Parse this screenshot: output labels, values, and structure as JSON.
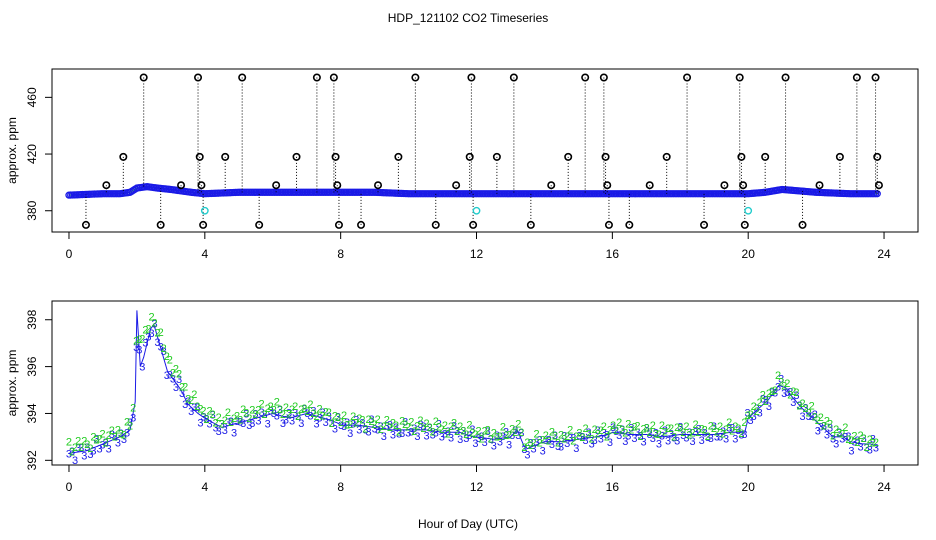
{
  "figure": {
    "title": "HDP_121102  CO2 Timeseries",
    "xlabel": "Hour of Day (UTC)"
  },
  "chart_data": [
    {
      "type": "scatter",
      "title": "HDP_121102  CO2 Timeseries",
      "xlabel": "",
      "ylabel": "approx. ppm",
      "xlim": [
        -0.5,
        25
      ],
      "ylim": [
        365,
        480
      ],
      "xticks": [
        0,
        4,
        8,
        12,
        16,
        20,
        24
      ],
      "yticks": [
        380,
        420,
        460
      ],
      "grid": false,
      "legend": "none",
      "series": [
        {
          "color": "#1a1ae6",
          "style": "dense circles",
          "x": [
            0.0,
            1.0,
            1.5,
            1.8,
            2.0,
            2.3,
            2.6,
            3.0,
            3.3,
            3.6,
            4.0,
            5.0,
            6.0,
            7.0,
            8.0,
            9.0,
            10.0,
            11.0,
            12.0,
            13.0,
            14.0,
            15.0,
            16.0,
            17.0,
            18.0,
            19.0,
            20.0,
            20.5,
            21.0,
            21.5,
            22.0,
            23.0,
            23.8
          ],
          "y": [
            391,
            392,
            392,
            393,
            396,
            397,
            396,
            395,
            394,
            393,
            392,
            393,
            393,
            393,
            393,
            393,
            392,
            392,
            392,
            392,
            392,
            392,
            392,
            392,
            392,
            392,
            392,
            393,
            395,
            394,
            393,
            392,
            392
          ]
        },
        {
          "color": "#000000",
          "style": "outlier circles with dotted drop lines",
          "x": [
            0.5,
            1.1,
            1.6,
            2.2,
            2.7,
            3.3,
            3.8,
            3.85,
            3.9,
            3.95,
            4.6,
            5.1,
            5.6,
            6.1,
            6.7,
            7.3,
            7.8,
            7.85,
            7.9,
            7.95,
            8.6,
            9.1,
            9.7,
            10.2,
            10.8,
            11.4,
            11.8,
            11.85,
            11.9,
            12.6,
            13.1,
            13.6,
            14.2,
            14.7,
            15.2,
            15.75,
            15.8,
            15.85,
            15.9,
            16.5,
            17.1,
            17.6,
            18.2,
            18.7,
            19.3,
            19.75,
            19.8,
            19.85,
            19.9,
            20.5,
            21.1,
            21.6,
            22.1,
            22.7,
            23.2,
            23.75,
            23.8,
            23.85
          ],
          "y": [
            370,
            398,
            418,
            474,
            370,
            398,
            474,
            418,
            398,
            370,
            418,
            474,
            370,
            398,
            418,
            474,
            474,
            418,
            398,
            370,
            370,
            398,
            418,
            474,
            370,
            398,
            418,
            474,
            370,
            418,
            474,
            370,
            398,
            418,
            474,
            474,
            418,
            398,
            370,
            370,
            398,
            418,
            474,
            370,
            398,
            474,
            418,
            398,
            370,
            418,
            474,
            370,
            398,
            418,
            474,
            474,
            418,
            398
          ]
        },
        {
          "color": "#22cccc",
          "style": "circles",
          "x": [
            4.0,
            12.0,
            20.0
          ],
          "y": [
            380,
            380,
            380
          ]
        }
      ]
    },
    {
      "type": "scatter",
      "title": "",
      "xlabel": "Hour of Day (UTC)",
      "ylabel": "approx. ppm",
      "xlim": [
        -0.5,
        25
      ],
      "ylim": [
        391.8,
        398.8
      ],
      "xticks": [
        0,
        4,
        8,
        12,
        16,
        20,
        24
      ],
      "yticks": [
        392,
        394,
        396,
        398
      ],
      "grid": false,
      "legend": "none",
      "series": [
        {
          "color": "#1a1ae6",
          "marker": "3",
          "x": [
            0.0,
            0.5,
            1.0,
            1.5,
            1.8,
            1.95,
            2.0,
            2.1,
            2.2,
            2.4,
            2.5,
            2.7,
            2.9,
            3.1,
            3.3,
            3.5,
            3.8,
            4.0,
            4.5,
            5.0,
            5.5,
            6.0,
            6.5,
            7.0,
            7.5,
            7.9,
            8.0,
            8.5,
            9.0,
            9.5,
            10.0,
            10.5,
            11.0,
            11.5,
            11.9,
            12.0,
            12.5,
            13.0,
            13.2,
            13.4,
            13.5,
            14.0,
            14.5,
            15.0,
            15.5,
            15.9,
            16.0,
            16.5,
            17.0,
            17.5,
            18.0,
            18.5,
            19.0,
            19.5,
            19.9,
            20.0,
            20.3,
            20.6,
            20.9,
            21.1,
            21.3,
            21.6,
            21.9,
            22.2,
            22.5,
            22.8,
            23.0,
            23.3,
            23.6,
            23.8
          ],
          "y": [
            392.3,
            392.4,
            392.7,
            393.0,
            393.3,
            394.5,
            398.4,
            396.0,
            396.4,
            397.6,
            397.8,
            396.8,
            395.8,
            395.4,
            395.0,
            394.4,
            394.0,
            393.8,
            393.4,
            393.6,
            393.8,
            394.0,
            393.8,
            394.0,
            393.8,
            393.6,
            393.5,
            393.5,
            393.4,
            393.3,
            393.3,
            393.3,
            393.2,
            393.2,
            393.0,
            393.0,
            392.9,
            393.0,
            393.3,
            392.6,
            392.5,
            392.8,
            392.8,
            392.9,
            393.0,
            393.1,
            393.2,
            393.1,
            393.1,
            393.0,
            393.1,
            393.1,
            393.1,
            393.2,
            393.2,
            393.8,
            394.2,
            394.6,
            395.2,
            395.1,
            394.7,
            394.2,
            393.8,
            393.4,
            393.0,
            393.0,
            392.8,
            392.7,
            392.7,
            392.6
          ]
        },
        {
          "color": "#22cc22",
          "marker": "2",
          "x": [
            0.0,
            0.5,
            1.0,
            1.5,
            1.8,
            1.95,
            2.0,
            2.1,
            2.2,
            2.4,
            2.5,
            2.7,
            2.9,
            3.1,
            3.3,
            3.5,
            3.8,
            4.0,
            4.5,
            5.0,
            5.5,
            6.0,
            6.5,
            7.0,
            7.5,
            7.9,
            8.0,
            8.5,
            9.0,
            9.5,
            10.0,
            10.5,
            11.0,
            11.5,
            11.9,
            12.0,
            12.5,
            13.0,
            13.2,
            13.4,
            13.5,
            14.0,
            14.5,
            15.0,
            15.5,
            15.9,
            16.0,
            16.5,
            17.0,
            17.5,
            18.0,
            18.5,
            19.0,
            19.5,
            19.9,
            20.0,
            20.3,
            20.6,
            20.9,
            21.1,
            21.3,
            21.6,
            21.9,
            22.2,
            22.5,
            22.8,
            23.0,
            23.3,
            23.6,
            23.8
          ],
          "y": [
            392.6,
            392.7,
            393.0,
            393.2,
            393.5,
            394.8,
            398.5,
            397.0,
            397.2,
            398.0,
            398.1,
            397.2,
            396.4,
            395.9,
            395.4,
            394.8,
            394.4,
            394.0,
            393.7,
            393.9,
            394.1,
            394.3,
            394.1,
            394.2,
            394.0,
            393.8,
            393.7,
            393.7,
            393.6,
            393.5,
            393.5,
            393.5,
            393.4,
            393.4,
            393.2,
            393.2,
            393.1,
            393.2,
            393.5,
            392.8,
            392.7,
            393.0,
            393.0,
            393.1,
            393.2,
            393.3,
            393.4,
            393.4,
            393.3,
            393.3,
            393.3,
            393.3,
            393.3,
            393.4,
            393.4,
            394.0,
            394.4,
            394.8,
            395.4,
            395.3,
            394.9,
            394.4,
            394.0,
            393.7,
            393.3,
            393.2,
            393.0,
            392.9,
            392.8,
            392.8
          ]
        }
      ]
    }
  ]
}
